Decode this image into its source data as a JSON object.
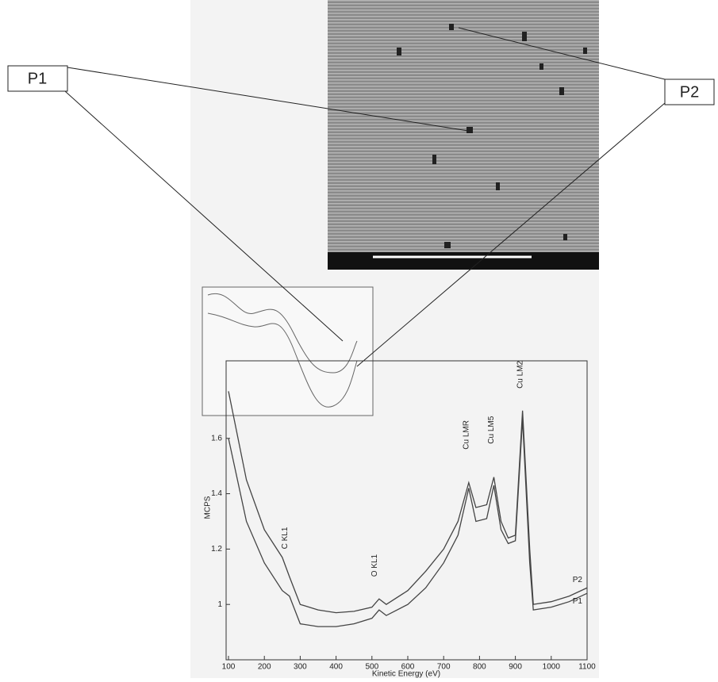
{
  "callouts": [
    "P1",
    "P2"
  ],
  "chart_data": {
    "type": "line",
    "xlabel": "Kinetic Energy (eV)",
    "ylabel": "MCPS",
    "x": [
      100,
      150,
      200,
      250,
      270,
      300,
      350,
      400,
      450,
      500,
      520,
      540,
      600,
      650,
      700,
      740,
      770,
      790,
      820,
      840,
      860,
      880,
      900,
      920,
      940,
      950,
      1000,
      1050,
      1100
    ],
    "series": [
      {
        "name": "P2",
        "color": "#444",
        "values": [
          1.77,
          1.45,
          1.27,
          1.17,
          1.1,
          1.0,
          0.98,
          0.97,
          0.975,
          0.99,
          1.02,
          1.0,
          1.05,
          1.12,
          1.2,
          1.3,
          1.44,
          1.35,
          1.36,
          1.46,
          1.3,
          1.24,
          1.25,
          1.7,
          1.2,
          1.0,
          1.01,
          1.03,
          1.06
        ]
      },
      {
        "name": "P1",
        "color": "#444",
        "values": [
          1.6,
          1.3,
          1.15,
          1.05,
          1.03,
          0.93,
          0.92,
          0.92,
          0.93,
          0.95,
          0.98,
          0.96,
          1.0,
          1.06,
          1.15,
          1.25,
          1.42,
          1.3,
          1.31,
          1.43,
          1.27,
          1.22,
          1.23,
          1.67,
          1.15,
          0.98,
          0.99,
          1.01,
          1.04
        ]
      }
    ],
    "xlim": [
      100,
      1100
    ],
    "xticks": [
      100,
      200,
      300,
      400,
      500,
      600,
      700,
      800,
      900,
      1000,
      1100
    ],
    "ylim": [
      0.8,
      1.88
    ],
    "yticks": [
      1,
      1.2,
      1.4,
      1.6
    ],
    "annotations": [
      {
        "text": "C KL1",
        "x": 265,
        "y": 1.2
      },
      {
        "text": "O KL1",
        "x": 515,
        "y": 1.1
      },
      {
        "text": "Cu LMR",
        "x": 770,
        "y": 1.56
      },
      {
        "text": "Cu LM5",
        "x": 840,
        "y": 1.58
      },
      {
        "text": "Cu LM2",
        "x": 920,
        "y": 1.78
      }
    ]
  }
}
